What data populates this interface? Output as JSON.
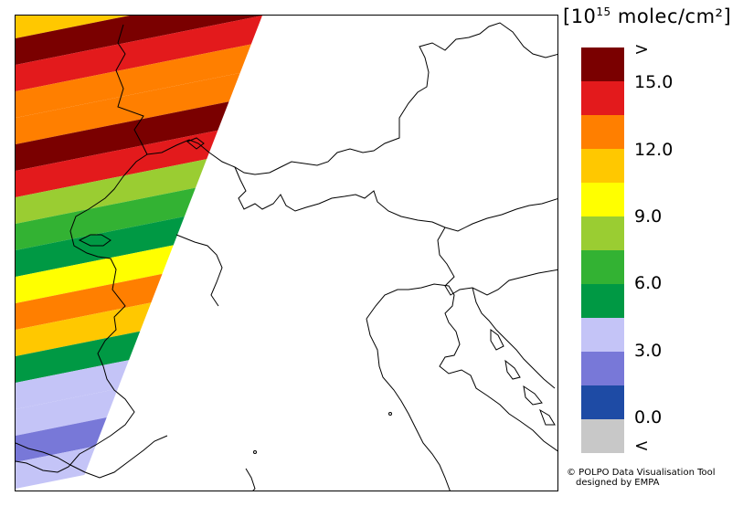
{
  "legend": {
    "title_base": "[10",
    "title_exp": "15",
    "title_unit": " molec/cm²]",
    "colors": [
      "#7a0000",
      "#e31a1c",
      "#ff7f00",
      "#ffc800",
      "#ffff00",
      "#9acd32",
      "#33b233",
      "#009944",
      "#c4c4f7",
      "#7878d8",
      "#1e4ba5",
      "#c8c8c8"
    ],
    "ticks": [
      ">",
      "15.0",
      "12.0",
      "9.0",
      "6.0",
      "3.0",
      "0.0",
      "<"
    ]
  },
  "credit": {
    "line1": "© POLPO Data Visualisation Tool",
    "line2": "designed by EMPA"
  },
  "swath": {
    "bands": [
      {
        "color": "#ffc800"
      },
      {
        "color": "#7a0000"
      },
      {
        "color": "#e31a1c"
      },
      {
        "color": "#ff7f00"
      },
      {
        "color": "#ff7f00"
      },
      {
        "color": "#7a0000"
      },
      {
        "color": "#e31a1c"
      },
      {
        "color": "#9acd32"
      },
      {
        "color": "#33b233"
      },
      {
        "color": "#009944"
      },
      {
        "color": "#ffff00"
      },
      {
        "color": "#ff7f00"
      },
      {
        "color": "#ffc800"
      },
      {
        "color": "#009944"
      },
      {
        "color": "#c4c4f7"
      },
      {
        "color": "#c4c4f7"
      },
      {
        "color": "#7878d8"
      },
      {
        "color": "#c4c4f7"
      }
    ]
  }
}
